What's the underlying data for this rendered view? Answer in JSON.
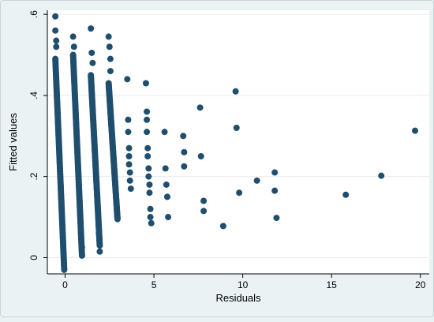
{
  "chart_data": {
    "type": "scatter",
    "title": "",
    "xlabel": "Residuals",
    "ylabel": "Fitted values",
    "xlim": [
      -1,
      20.5
    ],
    "ylim": [
      -0.04,
      0.61
    ],
    "xticks": [
      0,
      5,
      10,
      15,
      20
    ],
    "xtick_labels": [
      "0",
      "5",
      "10",
      "15",
      "20"
    ],
    "yticks": [
      0,
      0.2,
      0.4,
      0.6
    ],
    "ytick_labels": [
      "0",
      ".2",
      ".4",
      ".6"
    ],
    "grid": "horizontal",
    "legend": "none",
    "marker_color": "#1f4e6e",
    "bands": [
      {
        "x_start": -0.55,
        "x_end": -0.05,
        "y_top": 0.49,
        "y_bottom": -0.03
      },
      {
        "x_start": 0.45,
        "x_end": 0.95,
        "y_top": 0.5,
        "y_bottom": 0.005
      },
      {
        "x_start": 1.45,
        "x_end": 1.95,
        "y_top": 0.45,
        "y_bottom": 0.03
      },
      {
        "x_start": 2.45,
        "x_end": 2.95,
        "y_top": 0.43,
        "y_bottom": 0.095
      }
    ],
    "points": [
      {
        "x": -0.55,
        "y": 0.595
      },
      {
        "x": -0.55,
        "y": 0.56
      },
      {
        "x": -0.5,
        "y": 0.535
      },
      {
        "x": -0.5,
        "y": 0.52
      },
      {
        "x": 0.45,
        "y": 0.545
      },
      {
        "x": 0.5,
        "y": 0.52
      },
      {
        "x": 1.45,
        "y": 0.565
      },
      {
        "x": 1.5,
        "y": 0.505
      },
      {
        "x": 1.55,
        "y": 0.48
      },
      {
        "x": 2.45,
        "y": 0.545
      },
      {
        "x": 2.5,
        "y": 0.52
      },
      {
        "x": 2.55,
        "y": 0.49
      },
      {
        "x": 2.55,
        "y": 0.46
      },
      {
        "x": 0.95,
        "y": 0.025
      },
      {
        "x": 1.95,
        "y": 0.015
      },
      {
        "x": 1.9,
        "y": 0.06
      },
      {
        "x": 3.5,
        "y": 0.44
      },
      {
        "x": 3.55,
        "y": 0.34
      },
      {
        "x": 3.55,
        "y": 0.31
      },
      {
        "x": 3.6,
        "y": 0.27
      },
      {
        "x": 3.6,
        "y": 0.25
      },
      {
        "x": 3.6,
        "y": 0.23
      },
      {
        "x": 3.65,
        "y": 0.21
      },
      {
        "x": 3.65,
        "y": 0.19
      },
      {
        "x": 3.7,
        "y": 0.17
      },
      {
        "x": 4.55,
        "y": 0.43
      },
      {
        "x": 4.6,
        "y": 0.36
      },
      {
        "x": 4.6,
        "y": 0.34
      },
      {
        "x": 4.6,
        "y": 0.31
      },
      {
        "x": 4.65,
        "y": 0.27
      },
      {
        "x": 4.65,
        "y": 0.25
      },
      {
        "x": 4.7,
        "y": 0.22
      },
      {
        "x": 4.7,
        "y": 0.2
      },
      {
        "x": 4.75,
        "y": 0.18
      },
      {
        "x": 4.75,
        "y": 0.16
      },
      {
        "x": 4.8,
        "y": 0.12
      },
      {
        "x": 4.8,
        "y": 0.1
      },
      {
        "x": 4.85,
        "y": 0.085
      },
      {
        "x": 5.6,
        "y": 0.31
      },
      {
        "x": 5.65,
        "y": 0.22
      },
      {
        "x": 5.7,
        "y": 0.18
      },
      {
        "x": 5.75,
        "y": 0.15
      },
      {
        "x": 5.8,
        "y": 0.1
      },
      {
        "x": 6.65,
        "y": 0.3
      },
      {
        "x": 6.7,
        "y": 0.26
      },
      {
        "x": 6.7,
        "y": 0.225
      },
      {
        "x": 7.6,
        "y": 0.37
      },
      {
        "x": 7.65,
        "y": 0.25
      },
      {
        "x": 7.8,
        "y": 0.14
      },
      {
        "x": 7.8,
        "y": 0.115
      },
      {
        "x": 8.9,
        "y": 0.078
      },
      {
        "x": 9.6,
        "y": 0.41
      },
      {
        "x": 9.65,
        "y": 0.32
      },
      {
        "x": 9.8,
        "y": 0.16
      },
      {
        "x": 10.8,
        "y": 0.19
      },
      {
        "x": 11.8,
        "y": 0.21
      },
      {
        "x": 11.8,
        "y": 0.165
      },
      {
        "x": 11.9,
        "y": 0.098
      },
      {
        "x": 15.8,
        "y": 0.155
      },
      {
        "x": 17.8,
        "y": 0.202
      },
      {
        "x": 19.7,
        "y": 0.313
      }
    ]
  }
}
